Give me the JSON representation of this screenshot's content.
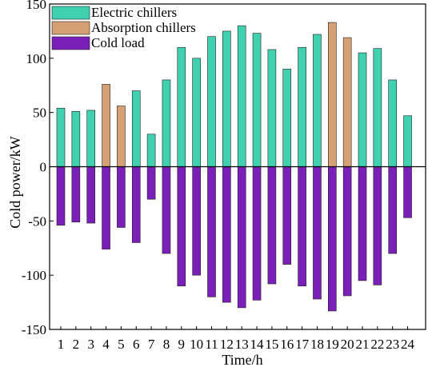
{
  "chart_data": {
    "type": "bar",
    "xlabel": "Time/h",
    "ylabel": "Cold power/kW",
    "ylim": [
      -150,
      150
    ],
    "yticks": [
      -150,
      -100,
      -50,
      0,
      50,
      100,
      150
    ],
    "categories": [
      "1",
      "2",
      "3",
      "4",
      "5",
      "6",
      "7",
      "8",
      "9",
      "10",
      "11",
      "12",
      "13",
      "14",
      "15",
      "16",
      "17",
      "18",
      "19",
      "20",
      "21",
      "22",
      "23",
      "24"
    ],
    "series": [
      {
        "name": "Electric chillers",
        "color": "#3fd1b0",
        "values": [
          54,
          51,
          52,
          0,
          0,
          70,
          30,
          80,
          110,
          100,
          120,
          125,
          130,
          123,
          108,
          90,
          110,
          122,
          0,
          0,
          105,
          109,
          80,
          47
        ]
      },
      {
        "name": "Absorption chillers",
        "color": "#d4a074",
        "values": [
          0,
          0,
          0,
          76,
          56,
          0,
          0,
          0,
          0,
          0,
          0,
          0,
          0,
          0,
          0,
          0,
          0,
          0,
          133,
          119,
          0,
          0,
          0,
          0
        ]
      },
      {
        "name": "Cold load",
        "color": "#7a1fb8",
        "values": [
          -54,
          -51,
          -52,
          -76,
          -56,
          -70,
          -30,
          -80,
          -110,
          -100,
          -120,
          -125,
          -130,
          -123,
          -108,
          -90,
          -110,
          -122,
          -133,
          -119,
          -105,
          -109,
          -80,
          -47
        ]
      }
    ],
    "legend_position": "top-left",
    "grid": false
  }
}
